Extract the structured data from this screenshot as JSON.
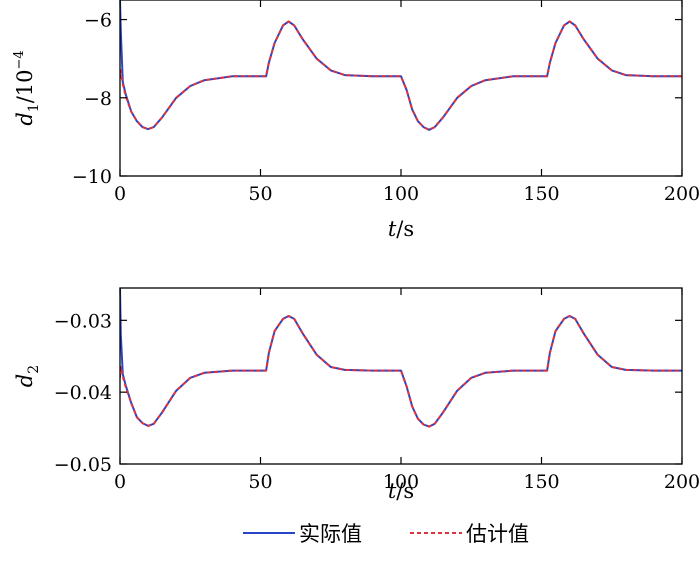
{
  "colors": {
    "actual": "#2846c8",
    "estimate": "#e0323c",
    "axis": "#000000"
  },
  "legend": {
    "actual": "实际值",
    "estimate": "估计值",
    "placement": "bottom-center"
  },
  "chart_data": [
    {
      "type": "line",
      "ylabel": {
        "var": "d",
        "sub": "1",
        "unit": "/10",
        "exp": "−4"
      },
      "xlabel": {
        "var": "t",
        "unit": "/s"
      },
      "xlim": [
        0,
        200
      ],
      "ylim": [
        -10,
        -5.5
      ],
      "xticks": [
        0,
        50,
        100,
        150,
        200
      ],
      "xtick_labels": [
        "0",
        "50",
        "100",
        "150",
        "200"
      ],
      "yticks": [
        -10,
        -8,
        -6
      ],
      "ytick_labels": [
        "−10",
        "−8",
        "−6"
      ],
      "grid": false,
      "series": [
        {
          "name": "实际值",
          "style": "solid",
          "x": [
            0,
            0.3,
            1,
            2,
            4,
            6,
            8,
            10,
            12,
            15,
            20,
            25,
            30,
            40,
            52,
            53,
            55,
            58,
            60,
            62,
            65,
            70,
            75,
            80,
            90,
            100,
            102,
            104,
            106,
            108,
            110,
            112,
            115,
            120,
            125,
            130,
            140,
            152,
            153,
            155,
            158,
            160,
            162,
            165,
            170,
            175,
            180,
            190,
            200
          ],
          "y": [
            -5.5,
            -6.3,
            -7.6,
            -7.9,
            -8.35,
            -8.6,
            -8.75,
            -8.8,
            -8.75,
            -8.5,
            -8.0,
            -7.7,
            -7.55,
            -7.45,
            -7.45,
            -7.1,
            -6.6,
            -6.15,
            -6.05,
            -6.15,
            -6.5,
            -7.0,
            -7.3,
            -7.42,
            -7.45,
            -7.45,
            -7.8,
            -8.3,
            -8.6,
            -8.75,
            -8.82,
            -8.75,
            -8.5,
            -8.0,
            -7.7,
            -7.55,
            -7.45,
            -7.45,
            -7.1,
            -6.6,
            -6.15,
            -6.05,
            -6.15,
            -6.5,
            -7.0,
            -7.3,
            -7.42,
            -7.45,
            -7.45
          ]
        },
        {
          "name": "估计值",
          "style": "dashed",
          "x": [
            0,
            0.3,
            1,
            2,
            4,
            6,
            8,
            10,
            12,
            15,
            20,
            25,
            30,
            40,
            52,
            53,
            55,
            58,
            60,
            62,
            65,
            70,
            75,
            80,
            90,
            100,
            102,
            104,
            106,
            108,
            110,
            112,
            115,
            120,
            125,
            130,
            140,
            152,
            153,
            155,
            158,
            160,
            162,
            165,
            170,
            175,
            180,
            190,
            200
          ],
          "y": [
            -7.5,
            -7.3,
            -7.65,
            -7.95,
            -8.35,
            -8.6,
            -8.75,
            -8.8,
            -8.75,
            -8.5,
            -8.0,
            -7.7,
            -7.55,
            -7.45,
            -7.45,
            -7.1,
            -6.6,
            -6.15,
            -6.05,
            -6.15,
            -6.5,
            -7.0,
            -7.3,
            -7.42,
            -7.45,
            -7.45,
            -7.8,
            -8.3,
            -8.6,
            -8.75,
            -8.82,
            -8.75,
            -8.5,
            -8.0,
            -7.7,
            -7.55,
            -7.45,
            -7.45,
            -7.1,
            -6.6,
            -6.15,
            -6.05,
            -6.15,
            -6.5,
            -7.0,
            -7.3,
            -7.42,
            -7.45,
            -7.45
          ]
        }
      ]
    },
    {
      "type": "line",
      "ylabel": {
        "var": "d",
        "sub": "2",
        "unit": "",
        "exp": ""
      },
      "xlabel": {
        "var": "t",
        "unit": "/s"
      },
      "xlim": [
        0,
        200
      ],
      "ylim": [
        -0.05,
        -0.0255
      ],
      "xticks": [
        0,
        50,
        100,
        150,
        200
      ],
      "xtick_labels": [
        "0",
        "50",
        "100",
        "150",
        "200"
      ],
      "yticks": [
        -0.05,
        -0.04,
        -0.03
      ],
      "ytick_labels": [
        "−0.05",
        "−0.04",
        "−0.03"
      ],
      "grid": false,
      "series": [
        {
          "name": "实际值",
          "style": "solid",
          "x": [
            0,
            0.3,
            1,
            2,
            4,
            6,
            8,
            10,
            12,
            15,
            20,
            25,
            30,
            40,
            52,
            53,
            55,
            58,
            60,
            62,
            65,
            70,
            75,
            80,
            90,
            100,
            102,
            104,
            106,
            108,
            110,
            112,
            115,
            120,
            125,
            130,
            140,
            152,
            153,
            155,
            158,
            160,
            162,
            165,
            170,
            175,
            180,
            190,
            200
          ],
          "y": [
            -0.0255,
            -0.032,
            -0.0375,
            -0.039,
            -0.0415,
            -0.0435,
            -0.0443,
            -0.0447,
            -0.0444,
            -0.0428,
            -0.0398,
            -0.038,
            -0.0373,
            -0.037,
            -0.037,
            -0.0345,
            -0.0315,
            -0.0298,
            -0.0294,
            -0.0298,
            -0.0318,
            -0.0348,
            -0.0365,
            -0.0369,
            -0.037,
            -0.037,
            -0.0392,
            -0.042,
            -0.0437,
            -0.0445,
            -0.0448,
            -0.0444,
            -0.0428,
            -0.0398,
            -0.038,
            -0.0373,
            -0.037,
            -0.037,
            -0.0345,
            -0.0315,
            -0.0298,
            -0.0294,
            -0.0298,
            -0.0318,
            -0.0348,
            -0.0365,
            -0.0369,
            -0.037,
            -0.037
          ]
        },
        {
          "name": "估计值",
          "style": "dashed",
          "x": [
            0,
            0.3,
            1,
            2,
            4,
            6,
            8,
            10,
            12,
            15,
            20,
            25,
            30,
            40,
            52,
            53,
            55,
            58,
            60,
            62,
            65,
            70,
            75,
            80,
            90,
            100,
            102,
            104,
            106,
            108,
            110,
            112,
            115,
            120,
            125,
            130,
            140,
            152,
            153,
            155,
            158,
            160,
            162,
            165,
            170,
            175,
            180,
            190,
            200
          ],
          "y": [
            -0.038,
            -0.0365,
            -0.0378,
            -0.0392,
            -0.0415,
            -0.0435,
            -0.0443,
            -0.0447,
            -0.0444,
            -0.0428,
            -0.0398,
            -0.038,
            -0.0373,
            -0.037,
            -0.037,
            -0.0345,
            -0.0315,
            -0.0298,
            -0.0294,
            -0.0298,
            -0.0318,
            -0.0348,
            -0.0365,
            -0.0369,
            -0.037,
            -0.037,
            -0.0392,
            -0.042,
            -0.0437,
            -0.0445,
            -0.0448,
            -0.0444,
            -0.0428,
            -0.0398,
            -0.038,
            -0.0373,
            -0.037,
            -0.037,
            -0.0345,
            -0.0315,
            -0.0298,
            -0.0294,
            -0.0298,
            -0.0318,
            -0.0348,
            -0.0365,
            -0.0369,
            -0.037,
            -0.037
          ]
        }
      ]
    }
  ]
}
